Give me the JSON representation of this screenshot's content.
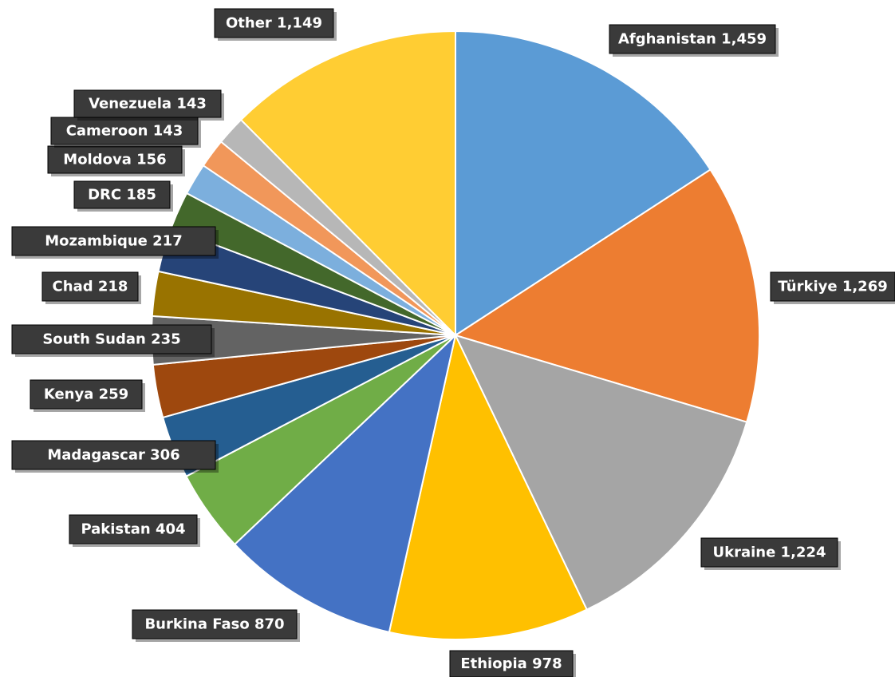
{
  "chart_data": {
    "type": "pie",
    "title": "",
    "slices": [
      {
        "label": "Afghanistan",
        "value": 1459,
        "value_text": "1,459",
        "color": "#5B9BD5"
      },
      {
        "label": "Türkiye",
        "value": 1269,
        "value_text": "1,269",
        "color": "#ED7D31"
      },
      {
        "label": "Ukraine",
        "value": 1224,
        "value_text": "1,224",
        "color": "#A5A5A5"
      },
      {
        "label": "Ethiopia",
        "value": 978,
        "value_text": "978",
        "color": "#FFC000"
      },
      {
        "label": "Burkina Faso",
        "value": 870,
        "value_text": "870",
        "color": "#4472C4"
      },
      {
        "label": "Pakistan",
        "value": 404,
        "value_text": "404",
        "color": "#70AD47"
      },
      {
        "label": "Madagascar",
        "value": 306,
        "value_text": "306",
        "color": "#255E91"
      },
      {
        "label": "Kenya",
        "value": 259,
        "value_text": "259",
        "color": "#9E480E"
      },
      {
        "label": "South Sudan",
        "value": 235,
        "value_text": "235",
        "color": "#636363"
      },
      {
        "label": "Chad",
        "value": 218,
        "value_text": "218",
        "color": "#997300"
      },
      {
        "label": "Mozambique",
        "value": 217,
        "value_text": "217",
        "color": "#264478"
      },
      {
        "label": "DRC",
        "value": 185,
        "value_text": "185",
        "color": "#43682B"
      },
      {
        "label": "Moldova",
        "value": 156,
        "value_text": "156",
        "color": "#7CAFDD"
      },
      {
        "label": "Cameroon",
        "value": 143,
        "value_text": "143",
        "color": "#F1975A"
      },
      {
        "label": "Venezuela",
        "value": 143,
        "value_text": "143",
        "color": "#B7B7B7"
      },
      {
        "label": "Other",
        "value": 1149,
        "value_text": "1,149",
        "color": "#FFCD33"
      }
    ],
    "legend": "none",
    "data_labels": "category and value, dark boxes outside slices"
  }
}
